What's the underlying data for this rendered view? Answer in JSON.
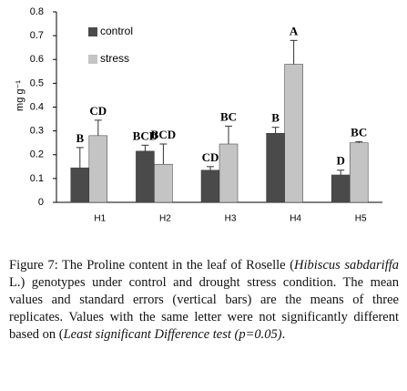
{
  "chart_data": {
    "type": "bar",
    "y_label": "mg g⁻¹",
    "categories": [
      "H1",
      "H2",
      "H3",
      "H4",
      "H5"
    ],
    "series": [
      {
        "name": "control",
        "color": "#4a4a4a",
        "values": [
          0.145,
          0.215,
          0.135,
          0.29,
          0.115
        ],
        "errors": [
          0.085,
          0.025,
          0.015,
          0.025,
          0.02
        ],
        "letters": [
          "B",
          "BCD",
          "CD",
          "B",
          "D"
        ]
      },
      {
        "name": "stress",
        "color": "#c4c4c4",
        "values": [
          0.28,
          0.16,
          0.245,
          0.58,
          0.25
        ],
        "errors": [
          0.065,
          0.085,
          0.075,
          0.1,
          0.005
        ],
        "letters": [
          "CD",
          "BCD",
          "BC",
          "A",
          "BC"
        ]
      }
    ],
    "ylim": [
      0,
      0.8
    ],
    "yticks": [
      0,
      0.1,
      0.2,
      0.3,
      0.4,
      0.5,
      0.6,
      0.7,
      0.8
    ],
    "legend": "top-left"
  },
  "caption": [
    {
      "text": "Figure 7: The Proline content in the leaf of Roselle (",
      "italic": false
    },
    {
      "text": "Hibiscus sabdariffa",
      "italic": true
    },
    {
      "text": " L.) genotypes  under control and drought stress condition. The mean values and standard errors (vertical bars) are the means of three replicates. Values with the same letter were not significantly different based on (",
      "italic": false
    },
    {
      "text": "Least significant Difference test (p=0.05)",
      "italic": true
    },
    {
      "text": ".",
      "italic": false
    }
  ]
}
